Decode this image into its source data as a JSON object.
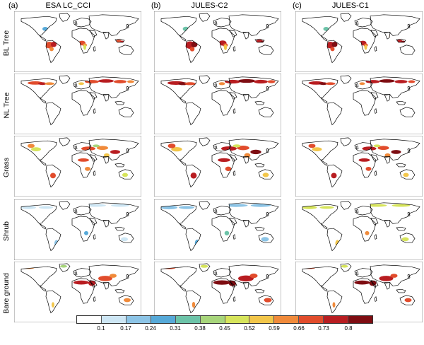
{
  "columns": [
    {
      "letter": "(a)",
      "title": "ESA LC_CCI"
    },
    {
      "letter": "(b)",
      "title": "JULES-C2"
    },
    {
      "letter": "(c)",
      "title": "JULES-C1"
    }
  ],
  "rows": [
    "BL Tree",
    "NL Tree",
    "Grass",
    "Shrub",
    "Bare ground"
  ],
  "colorbar": {
    "colors": [
      "#ffffff",
      "#cde6f4",
      "#8cc4e6",
      "#56a9d8",
      "#6cc3a8",
      "#a7d57b",
      "#d6e45b",
      "#f2c64a",
      "#f08a3a",
      "#e14c2c",
      "#b81d21",
      "#7e0d12"
    ],
    "tick_labels": [
      "0.1",
      "0.17",
      "0.24",
      "0.31",
      "0.38",
      "0.45",
      "0.52",
      "0.59",
      "0.66",
      "0.73",
      "0.8"
    ]
  },
  "map_colors": {
    "ocean": "#ffffff",
    "coast": "#000000",
    "frame": "#444444"
  }
}
